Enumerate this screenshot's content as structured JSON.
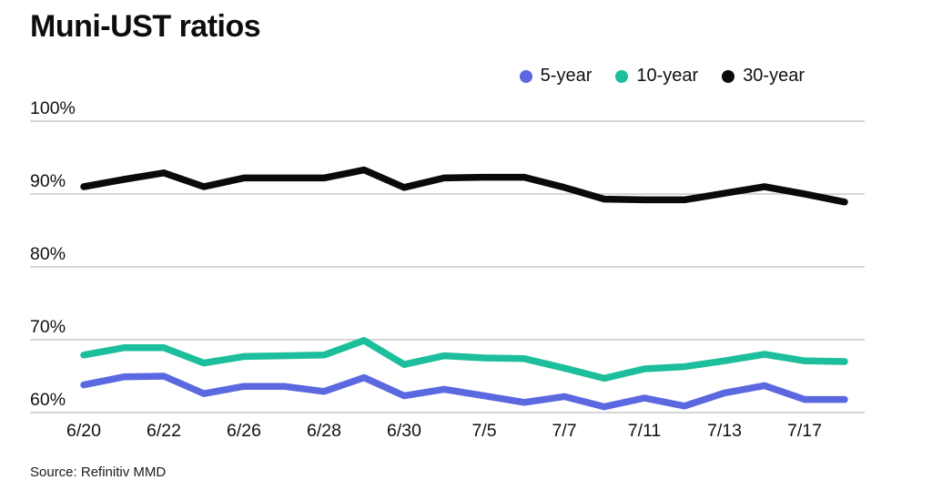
{
  "title": "Muni-UST ratios",
  "source": "Source: Refinitiv MMD",
  "legend": [
    {
      "label": "5-year",
      "color": "#5b68e0"
    },
    {
      "label": "10-year",
      "color": "#1cbe9c"
    },
    {
      "label": "30-year",
      "color": "#0a0a0a"
    }
  ],
  "chart_data": {
    "type": "line",
    "title": "Muni-UST ratios",
    "xlabel": "",
    "ylabel": "",
    "x": [
      "6/20",
      "6/21",
      "6/22",
      "6/23",
      "6/26",
      "6/27",
      "6/28",
      "6/29",
      "6/30",
      "7/3",
      "7/5",
      "7/6",
      "7/7",
      "7/10",
      "7/11",
      "7/12",
      "7/13",
      "7/14",
      "7/17",
      "7/18"
    ],
    "x_tick_labels": [
      "6/20",
      "6/22",
      "6/26",
      "6/28",
      "6/30",
      "7/5",
      "7/7",
      "7/11",
      "7/13",
      "7/17"
    ],
    "x_tick_every": 2,
    "series": [
      {
        "name": "5-year",
        "color": "#5b68e0",
        "values": [
          63.8,
          64.9,
          65.0,
          62.6,
          63.6,
          63.6,
          62.9,
          64.8,
          62.3,
          63.2,
          62.3,
          61.4,
          62.2,
          60.8,
          62.0,
          60.9,
          62.7,
          63.7,
          61.8,
          61.8
        ]
      },
      {
        "name": "10-year",
        "color": "#1cbe9c",
        "values": [
          67.9,
          68.9,
          68.9,
          66.8,
          67.7,
          67.8,
          67.9,
          69.9,
          66.6,
          67.8,
          67.5,
          67.4,
          66.1,
          64.7,
          66.0,
          66.3,
          67.1,
          68.0,
          67.1,
          67.0
        ]
      },
      {
        "name": "30-year",
        "color": "#0a0a0a",
        "values": [
          91.0,
          92.0,
          92.9,
          91.0,
          92.2,
          92.2,
          92.2,
          93.3,
          90.9,
          92.2,
          92.3,
          92.3,
          90.9,
          89.3,
          89.2,
          89.2,
          90.1,
          91.0,
          90.0,
          88.9
        ]
      }
    ],
    "ylim": [
      60,
      100
    ],
    "yticks": [
      60,
      70,
      80,
      90,
      100
    ],
    "ytick_suffix": "%",
    "grid": "horizontal",
    "legend_position": "top-right",
    "gridline_color": "#c9c9c9"
  }
}
